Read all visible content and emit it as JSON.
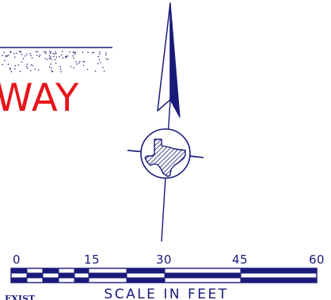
{
  "road_label": "WAY",
  "scale_bar": {
    "ticks": [
      "0",
      "15",
      "30",
      "45",
      "60"
    ],
    "caption": "SCALE IN FEET"
  },
  "corner_label": "EXIST",
  "colors": {
    "linework": "#1a1a7a",
    "road_label": "#e8141b",
    "background": "#ffffff"
  },
  "north_arrow": {
    "emblem_icon": "texas-state-outline-icon"
  }
}
